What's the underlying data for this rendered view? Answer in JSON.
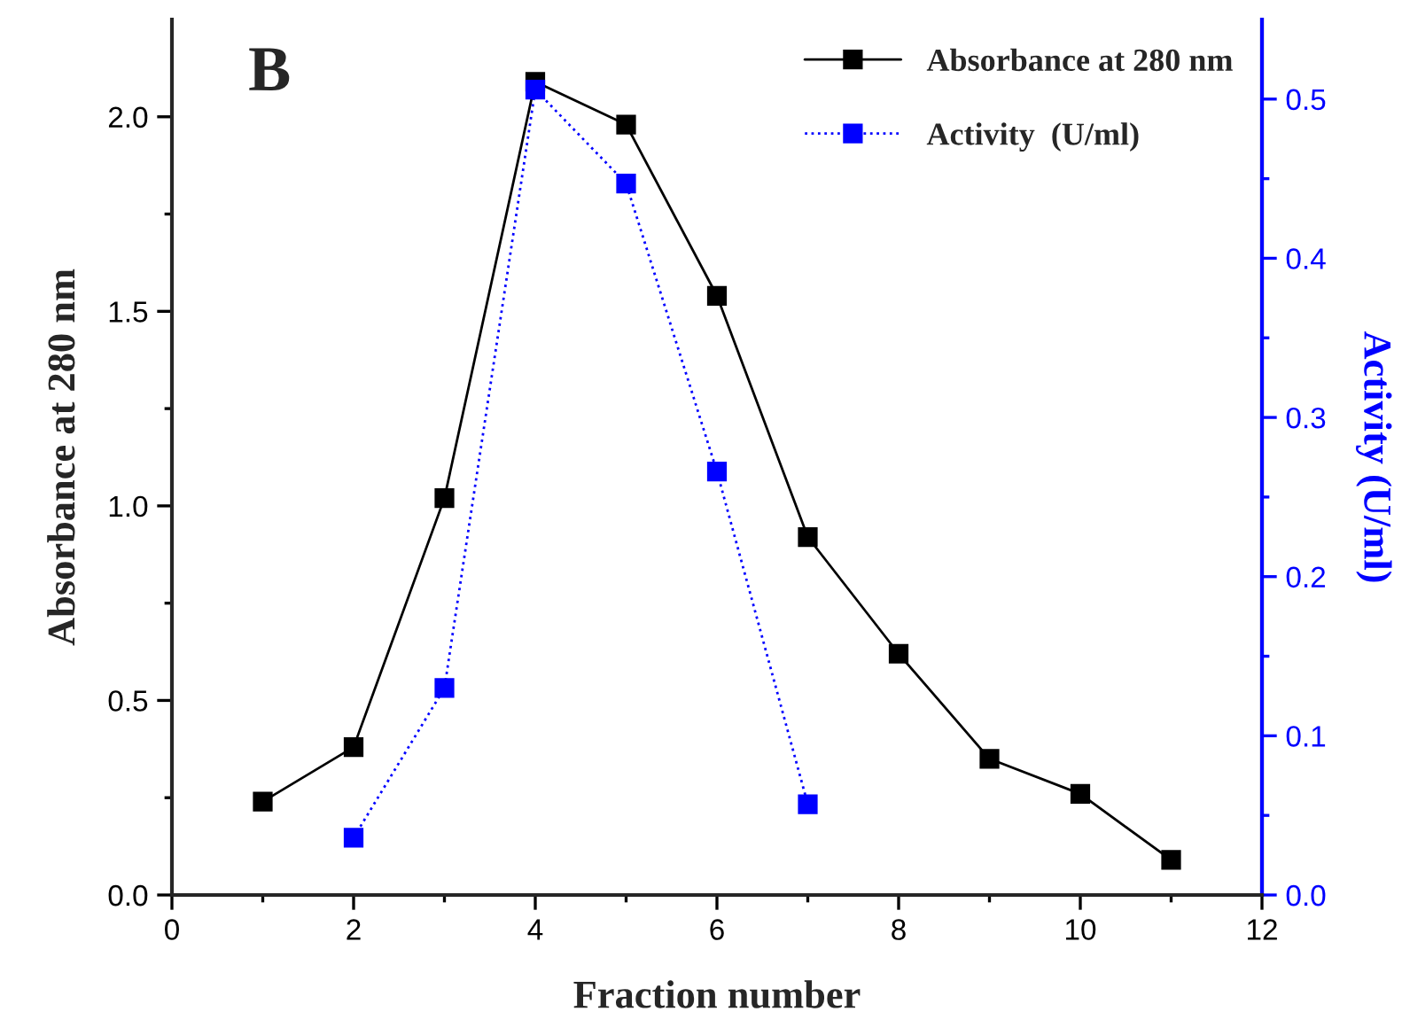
{
  "chart_data": {
    "type": "line",
    "title": "B",
    "xlabel": "Fraction number",
    "ylabel": "Absorbance at 280 nm",
    "y2label": "Activity (U/ml)",
    "series": [
      {
        "name": "Absorbance at 280 nm",
        "color": "#000000",
        "x": [
          1,
          2,
          3,
          4,
          5,
          6,
          7,
          8,
          9,
          10,
          11
        ],
        "values": [
          0.24,
          0.38,
          1.02,
          2.09,
          1.98,
          1.54,
          0.92,
          0.62,
          0.35,
          0.26,
          0.09
        ],
        "marker": "square",
        "line_style": "solid"
      },
      {
        "name": "Activity  (U/ml)",
        "color": "#0000ff",
        "axis": "y2",
        "x": [
          2,
          3,
          4,
          5,
          6,
          7
        ],
        "values": [
          0.036,
          0.13,
          0.506,
          0.447,
          0.266,
          0.057
        ],
        "marker": "square",
        "line_style": "dotted"
      }
    ],
    "xlim": [
      0,
      12
    ],
    "xticks": [
      0,
      {
        "value": 1,
        "label": null
      },
      2,
      {
        "value": 3,
        "label": null
      },
      4,
      {
        "value": 5,
        "label": null
      },
      6,
      {
        "value": 7,
        "label": null
      },
      8,
      {
        "value": 9,
        "label": null
      },
      10,
      {
        "value": 11,
        "label": null
      },
      12
    ],
    "ylim": [
      0,
      2.25
    ],
    "yticks": [
      {
        "value": 0,
        "label": "0.0"
      },
      {
        "value": 0.25,
        "label": null
      },
      {
        "value": 0.5,
        "label": "0.5"
      },
      {
        "value": 0.75,
        "label": null
      },
      {
        "value": 1.0,
        "label": "1.0"
      },
      {
        "value": 1.25,
        "label": null
      },
      {
        "value": 1.5,
        "label": "1.5"
      },
      {
        "value": 1.75,
        "label": null
      },
      {
        "value": 2.0,
        "label": "2.0"
      }
    ],
    "y2lim": [
      0,
      0.55
    ],
    "y2ticks": [
      {
        "value": 0,
        "label": "0.0"
      },
      {
        "value": 0.05,
        "label": null
      },
      {
        "value": 0.1,
        "label": "0.1"
      },
      {
        "value": 0.15,
        "label": null
      },
      {
        "value": 0.2,
        "label": "0.2"
      },
      {
        "value": 0.25,
        "label": null
      },
      {
        "value": 0.3,
        "label": "0.3"
      },
      {
        "value": 0.35,
        "label": null
      },
      {
        "value": 0.4,
        "label": "0.4"
      },
      {
        "value": 0.45,
        "label": null
      },
      {
        "value": 0.5,
        "label": "0.5"
      }
    ],
    "legend": "top right",
    "grid": false
  }
}
